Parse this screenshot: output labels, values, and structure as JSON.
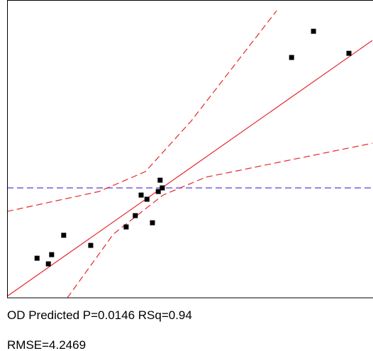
{
  "chart_data": {
    "type": "scatter",
    "xlim": [
      0,
      100
    ],
    "ylim": [
      0,
      100
    ],
    "annotations": [
      "OD Predicted P=0.0146 RSq=0.94",
      "RMSE=4.2469"
    ],
    "series": [
      {
        "style": "dashed",
        "color": "#5b3fd6",
        "x": [
          0,
          100
        ],
        "values": [
          36.9,
          36.9
        ]
      },
      {
        "style": "dashed",
        "color": "#e8262a",
        "x": [
          0,
          25.2,
          37.9,
          50.5,
          73.8
        ],
        "values": [
          29.0,
          35.7,
          42.4,
          59.5,
          96.4
        ]
      },
      {
        "style": "dashed",
        "color": "#e8262a",
        "x": [
          16.5,
          29.1,
          42.7,
          54.4,
          100
        ],
        "values": [
          0,
          21.4,
          34.5,
          40.5,
          51.9
        ]
      },
      {
        "style": "solid",
        "color": "#e8262a",
        "x": [
          0,
          100
        ],
        "values": [
          0.5,
          86.4
        ]
      },
      {
        "style": "markers",
        "color": "#000000",
        "x": [
          8.2,
          11.3,
          12.2,
          15.5,
          22.9,
          32.6,
          35.1,
          36.7,
          38.3,
          39.8,
          41.4,
          41.9,
          42.5,
          77.9,
          83.9,
          93.6
        ],
        "values": [
          13.3,
          11.4,
          14.5,
          21.0,
          17.6,
          23.8,
          27.6,
          34.5,
          33.1,
          25.2,
          35.7,
          39.5,
          36.9,
          80.7,
          89.5,
          82.1
        ]
      }
    ]
  }
}
